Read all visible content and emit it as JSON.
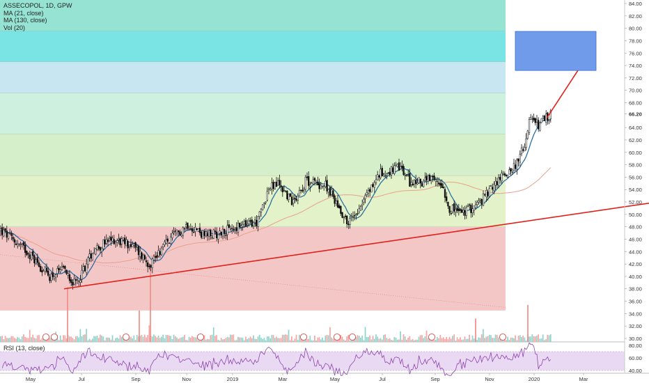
{
  "header": {
    "symbol_line": "ASSECOPOL, 1D, GPW",
    "indicators": [
      "MA (21, close)",
      "MA (130, close)",
      "Vol (20)"
    ]
  },
  "rsi_panel": {
    "label": "RSI (13, close)"
  },
  "price_axis": {
    "ticks": [
      "84.00",
      "82.00",
      "80.00",
      "78.00",
      "76.00",
      "74.00",
      "72.00",
      "70.00",
      "68.00",
      "66.20",
      "64.00",
      "62.00",
      "60.00",
      "58.00",
      "56.00",
      "54.00",
      "52.00",
      "50.00",
      "48.00",
      "46.00",
      "44.00",
      "42.00",
      "40.00",
      "38.00",
      "36.00",
      "34.00",
      "32.00",
      "30.00"
    ],
    "last_price": "66.20"
  },
  "rsi_axis": {
    "ticks": [
      "80.00",
      "60.00",
      "40.00"
    ]
  },
  "time_axis": {
    "labels": [
      "May",
      "Jul",
      "Sep",
      "Nov",
      "2019",
      "Mar",
      "May",
      "Jul",
      "Sep",
      "Nov",
      "2020",
      "Mar"
    ]
  },
  "colors": {
    "up": "#26a69a",
    "down": "#ef5350",
    "candle": "#111111",
    "ma21": "#2b6ea3",
    "ma130": "#e8a08a",
    "trend": "#e0201b",
    "target_box": "#6f9bea",
    "rsi": "#8e44ad",
    "rsi_band": "#e9d9f3"
  },
  "chart_data": {
    "type": "candlestick",
    "title": "ASSECOPOL, 1D, GPW",
    "y_range": [
      29,
      85
    ],
    "rsi_range": [
      20,
      90
    ],
    "fib_zones": [
      {
        "from": 34.5,
        "to": 48.0,
        "color": "#f4c7c7"
      },
      {
        "from": 48.0,
        "to": 56.2,
        "color": "#e3f2c8"
      },
      {
        "from": 56.2,
        "to": 63.0,
        "color": "#d5efca"
      },
      {
        "from": 63.0,
        "to": 69.6,
        "color": "#cdf0df"
      },
      {
        "from": 69.6,
        "to": 74.6,
        "color": "#c8e6f1"
      },
      {
        "from": 74.6,
        "to": 79.6,
        "color": "#7ae3e3"
      },
      {
        "from": 79.6,
        "to": 85.0,
        "color": "#96e3d3"
      }
    ],
    "price_path": [
      [
        0,
        47.5
      ],
      [
        40,
        44
      ],
      [
        70,
        40
      ],
      [
        95,
        41
      ],
      [
        108,
        38.5
      ],
      [
        135,
        44.5
      ],
      [
        165,
        46
      ],
      [
        190,
        45
      ],
      [
        215,
        42
      ],
      [
        235,
        45
      ],
      [
        270,
        48.5
      ],
      [
        295,
        46.5
      ],
      [
        330,
        47.5
      ],
      [
        370,
        48.8
      ],
      [
        385,
        54
      ],
      [
        400,
        55
      ],
      [
        420,
        52
      ],
      [
        440,
        55.5
      ],
      [
        470,
        54.5
      ],
      [
        500,
        48.5
      ],
      [
        520,
        52
      ],
      [
        545,
        56.5
      ],
      [
        575,
        57.5
      ],
      [
        590,
        55
      ],
      [
        615,
        55.5
      ],
      [
        635,
        55
      ],
      [
        645,
        51
      ],
      [
        665,
        50.2
      ],
      [
        690,
        52
      ],
      [
        715,
        55.5
      ],
      [
        730,
        57
      ],
      [
        745,
        58.5
      ],
      [
        755,
        62
      ],
      [
        760,
        65
      ],
      [
        775,
        64.5
      ],
      [
        792,
        66.2
      ]
    ],
    "volume_spikes": [
      {
        "x": 97,
        "top": 38.2
      },
      {
        "x": 216,
        "top": 42.0
      },
      {
        "x": 758,
        "top": 35.4
      },
      {
        "x": 683,
        "top": 33.2
      },
      {
        "x": 200,
        "top": 34.5
      }
    ],
    "earnings_markers": [
      66,
      78,
      181,
      288,
      436,
      484,
      506,
      620,
      722
    ],
    "trend_lines": [
      {
        "from": [
          92,
          38.0
        ],
        "to": [
          932,
          51.8
        ]
      },
      {
        "from": [
          785,
          65.5
        ],
        "to": [
          848,
          76.3
        ]
      }
    ],
    "target_box": {
      "x_from": 740,
      "x_to": 856,
      "y_from": 73.2,
      "y_to": 79.5
    },
    "rsi_bounds": [
      40,
      70
    ]
  }
}
